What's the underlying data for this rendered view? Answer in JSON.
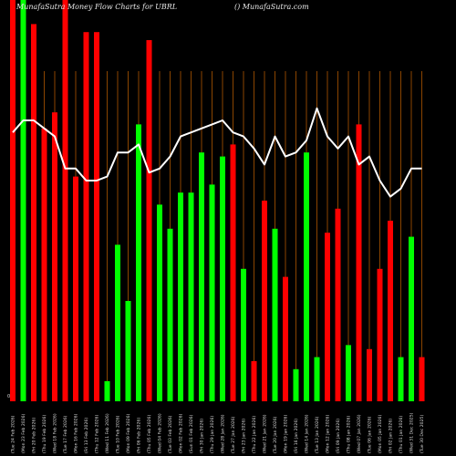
{
  "header": {
    "left": "MunafaSutra  Money Flow  Charts for UBRL",
    "right": "() MunafaSutra.com"
  },
  "chart_data": {
    "type": "bar",
    "title": "MunafaSutra  Money Flow  Charts for UBRL",
    "xlabel": "",
    "ylabel": "",
    "ylim": [
      0,
      100
    ],
    "y_tick_label": "0",
    "grid": "vertical lines, dark orange",
    "colors": {
      "up": "#00ff00",
      "down": "#ff0000",
      "line": "#ffffff",
      "grid": "#8b4500",
      "text": "#d8d8d8",
      "background": "#000000"
    },
    "categories": [
      "Tue 24 Feb 2026",
      "Mon 23 Feb 2026",
      "Fri 20 Feb 2026",
      "Thu 19 Feb 2026",
      "Wed 18 Feb 2026",
      "Tue 17 Feb 2026",
      "Mon 16 Feb 2026",
      "Fri 13 Feb 2026",
      "Thu 12 Feb 2026",
      "Wed 11 Feb 2026",
      "Tue 10 Feb 2026",
      "Mon 09 Feb 2026",
      "Fri 06 Feb 2026",
      "Thu 05 Feb 2026",
      "Wed 04 Feb 2026",
      "Tue 03 Feb 2026",
      "Mon 02 Feb 2026",
      "Sun 01 Feb 2026",
      "Fri 30 Jan 2026",
      "Thu 29 Jan 2026",
      "Wed 28 Jan 2026",
      "Tue 27 Jan 2026",
      "Fri 23 Jan 2026",
      "Thu 22 Jan 2026",
      "Wed 21 Jan 2026",
      "Tue 20 Jan 2026",
      "Mon 19 Jan 2026",
      "Fri 16 Jan 2026",
      "Wed 14 Jan 2026",
      "Tue 13 Jan 2026",
      "Mon 12 Jan 2026",
      "Fri 09 Jan 2026",
      "Thu 08 Jan 2026",
      "Wed 07 Jan 2026",
      "Tue 06 Jan 2026",
      "Mon 05 Jan 2026",
      "Fri 02 Jan 2026",
      "Thu 01 Jan 2026",
      "Wed 31 Dec 2025",
      "Tue 30 Dec 2025"
    ],
    "x_labels": [
      "(Tue 24 Feb 2026)",
      "(Mon 23 Feb 2026)",
      "(Fri 20 Feb 2026)",
      "(Thu 19 Feb 2026)",
      "(Wed 18 Feb 2026)",
      "(Tue 17 Feb 2026)",
      "(Mon 16 Feb 2026)",
      "(Fri 13 Feb 2026)",
      "(Thu 12 Feb 2026)",
      "(Wed 11 Feb 2026)",
      "(Tue 10 Feb 2026)",
      "(Mon 09 Feb 2026)",
      "(Fri 06 Feb 2026)",
      "(Thu 05 Feb 2026)",
      "(Wed 04 Feb 2026)",
      "(Tue 03 Feb 2026)",
      "(Mon 02 Feb 2026)",
      "(Sun 01 Feb 2026)",
      "(Fri 30 Jan 2026)",
      "(Thu 29 Jan 2026)",
      "(Wed 28 Jan 2026)",
      "(Tue 27 Jan 2026)",
      "(Fri 23 Jan 2026)",
      "(Thu 22 Jan 2026)",
      "(Wed 21 Jan 2026)",
      "(Tue 20 Jan 2026)",
      "(Mon 19 Jan 2026)",
      "(Fri 16 Jan 2026)",
      "(Wed 14 Jan 2026)",
      "(Tue 13 Jan 2026)",
      "(Mon 12 Jan 2026)",
      "(Fri 09 Jan 2026)",
      "(Thu 08 Jan 2026)",
      "(Wed 07 Jan 2026)",
      "(Tue 06 Jan 2026)",
      "(Mon 05 Jan 2026)",
      "(Fri 02 Jan 2026)",
      "(Thu 01 Jan 2026)",
      "(Wed 31 Dec 2025)",
      "(Tue 30 Dec 2025)"
    ],
    "series": [
      {
        "type": "bar",
        "values": [
          100,
          100,
          94,
          68,
          72,
          100,
          56,
          92,
          92,
          5,
          39,
          25,
          69,
          90,
          49,
          43,
          52,
          52,
          62,
          54,
          61,
          64,
          33,
          10,
          50,
          43,
          31,
          8,
          62,
          11,
          42,
          48,
          14,
          69,
          13,
          33,
          45,
          11,
          41,
          11
        ],
        "directions": [
          "down",
          "up",
          "down",
          "down",
          "down",
          "down",
          "down",
          "down",
          "down",
          "up",
          "up",
          "up",
          "up",
          "down",
          "up",
          "up",
          "up",
          "up",
          "up",
          "up",
          "up",
          "down",
          "up",
          "down",
          "down",
          "up",
          "down",
          "up",
          "up",
          "up",
          "down",
          "down",
          "up",
          "down",
          "down",
          "down",
          "down",
          "up",
          "up",
          "down"
        ]
      },
      {
        "type": "line",
        "values": [
          67,
          70,
          70,
          68,
          66,
          58,
          58,
          55,
          55,
          56,
          62,
          62,
          64,
          57,
          58,
          61,
          66,
          67,
          68,
          69,
          70,
          67,
          66,
          63,
          59,
          66,
          61,
          62,
          65,
          73,
          66,
          63,
          66,
          59,
          61,
          55,
          51,
          53,
          58,
          58
        ]
      }
    ]
  }
}
